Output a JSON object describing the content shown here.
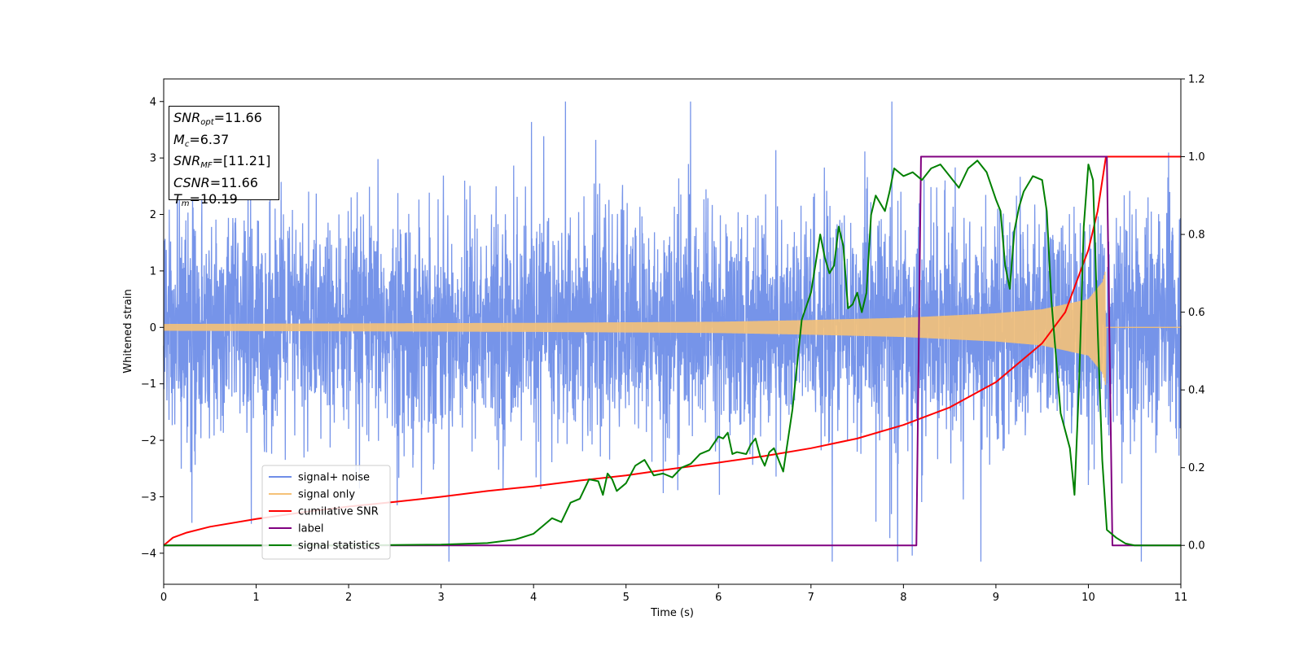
{
  "chart_data": {
    "type": "line",
    "xlabel": "Time (s)",
    "ylabel": "Whitened strain",
    "xlim": [
      0,
      11
    ],
    "ylim": [
      -4.55,
      4.4
    ],
    "y2lim": [
      -0.1,
      1.2
    ],
    "x_ticks": [
      0,
      1,
      2,
      3,
      4,
      5,
      6,
      7,
      8,
      9,
      10,
      11
    ],
    "y_ticks": [
      -4,
      -3,
      -2,
      -1,
      0,
      1,
      2,
      3,
      4
    ],
    "y2_ticks": [
      0.0,
      0.2,
      0.4,
      0.6,
      0.8,
      1.0,
      1.2
    ],
    "legend_position": "lower-left",
    "annotation": {
      "snr_opt": {
        "base": "SNR",
        "sub": "opt",
        "value": "=11.66"
      },
      "mc": {
        "base": "M",
        "sub": "c",
        "value": "=6.37"
      },
      "snr_mf": {
        "base": "SNR",
        "sub": "MF",
        "value": "=[11.21]"
      },
      "csnr": {
        "base": "CSNR",
        "sub": "",
        "value": "=11.66"
      },
      "tm": {
        "base": "T",
        "sub": "m",
        "value": "=10.19"
      }
    },
    "series": [
      {
        "name": "signal+ noise",
        "color": "#6f8ee8",
        "axis": "left",
        "kind": "noise",
        "typical_range": [
          -2.6,
          2.6
        ],
        "peak_range": [
          -4.15,
          4.0
        ]
      },
      {
        "name": "signal only",
        "color": "#f5c178",
        "axis": "left",
        "kind": "chirp",
        "coalescence_time": 10.19,
        "x": [
          0,
          2,
          4,
          6,
          7,
          8,
          9,
          9.5,
          10,
          10.15,
          10.19
        ],
        "amplitude": [
          0.06,
          0.07,
          0.08,
          0.1,
          0.13,
          0.17,
          0.25,
          0.32,
          0.5,
          0.8,
          1.05
        ]
      },
      {
        "name": "cumilative SNR",
        "color": "#ff0000",
        "axis": "right",
        "x": [
          0,
          0.1,
          0.25,
          0.5,
          1,
          1.5,
          2,
          2.5,
          3,
          3.5,
          4,
          4.5,
          5,
          5.5,
          6,
          6.5,
          7,
          7.5,
          8,
          8.5,
          9,
          9.5,
          9.75,
          10,
          10.1,
          10.19,
          11
        ],
        "values": [
          0.0,
          0.02,
          0.033,
          0.048,
          0.068,
          0.085,
          0.1,
          0.112,
          0.125,
          0.14,
          0.152,
          0.167,
          0.18,
          0.197,
          0.213,
          0.23,
          0.25,
          0.275,
          0.31,
          0.355,
          0.42,
          0.52,
          0.6,
          0.76,
          0.86,
          1.0,
          1.0
        ]
      },
      {
        "name": "label",
        "color": "#800080",
        "axis": "right",
        "x": [
          0,
          8.14,
          8.19,
          10.2,
          10.26,
          11
        ],
        "values": [
          0,
          0,
          1,
          1,
          0,
          0
        ]
      },
      {
        "name": "signal statistics",
        "color": "#008000",
        "axis": "right",
        "x": [
          0,
          2,
          3,
          3.5,
          3.8,
          4.0,
          4.1,
          4.2,
          4.3,
          4.4,
          4.5,
          4.6,
          4.7,
          4.75,
          4.8,
          4.85,
          4.9,
          5.0,
          5.1,
          5.2,
          5.3,
          5.4,
          5.5,
          5.6,
          5.7,
          5.8,
          5.9,
          6.0,
          6.05,
          6.1,
          6.15,
          6.2,
          6.3,
          6.35,
          6.4,
          6.45,
          6.5,
          6.55,
          6.6,
          6.7,
          6.8,
          6.9,
          7.0,
          7.1,
          7.15,
          7.2,
          7.25,
          7.3,
          7.35,
          7.4,
          7.45,
          7.5,
          7.55,
          7.6,
          7.65,
          7.7,
          7.8,
          7.85,
          7.9,
          8.0,
          8.1,
          8.2,
          8.3,
          8.4,
          8.5,
          8.6,
          8.7,
          8.8,
          8.9,
          9.0,
          9.05,
          9.1,
          9.15,
          9.2,
          9.25,
          9.3,
          9.4,
          9.5,
          9.55,
          9.6,
          9.7,
          9.8,
          9.85,
          9.9,
          9.95,
          10.0,
          10.05,
          10.1,
          10.15,
          10.2,
          10.3,
          10.4,
          10.5,
          11
        ],
        "values": [
          0,
          0,
          0.002,
          0.006,
          0.015,
          0.03,
          0.05,
          0.07,
          0.06,
          0.11,
          0.12,
          0.17,
          0.165,
          0.13,
          0.185,
          0.17,
          0.14,
          0.16,
          0.205,
          0.22,
          0.18,
          0.185,
          0.175,
          0.2,
          0.21,
          0.235,
          0.245,
          0.28,
          0.275,
          0.29,
          0.235,
          0.24,
          0.235,
          0.26,
          0.275,
          0.23,
          0.205,
          0.24,
          0.25,
          0.19,
          0.35,
          0.58,
          0.65,
          0.8,
          0.74,
          0.7,
          0.72,
          0.82,
          0.77,
          0.61,
          0.62,
          0.65,
          0.6,
          0.65,
          0.85,
          0.9,
          0.86,
          0.91,
          0.97,
          0.95,
          0.96,
          0.94,
          0.97,
          0.98,
          0.95,
          0.92,
          0.97,
          0.99,
          0.96,
          0.89,
          0.86,
          0.72,
          0.66,
          0.81,
          0.87,
          0.91,
          0.95,
          0.94,
          0.86,
          0.63,
          0.34,
          0.25,
          0.13,
          0.42,
          0.82,
          0.98,
          0.94,
          0.56,
          0.22,
          0.04,
          0.02,
          0.005,
          0,
          0
        ]
      }
    ]
  }
}
